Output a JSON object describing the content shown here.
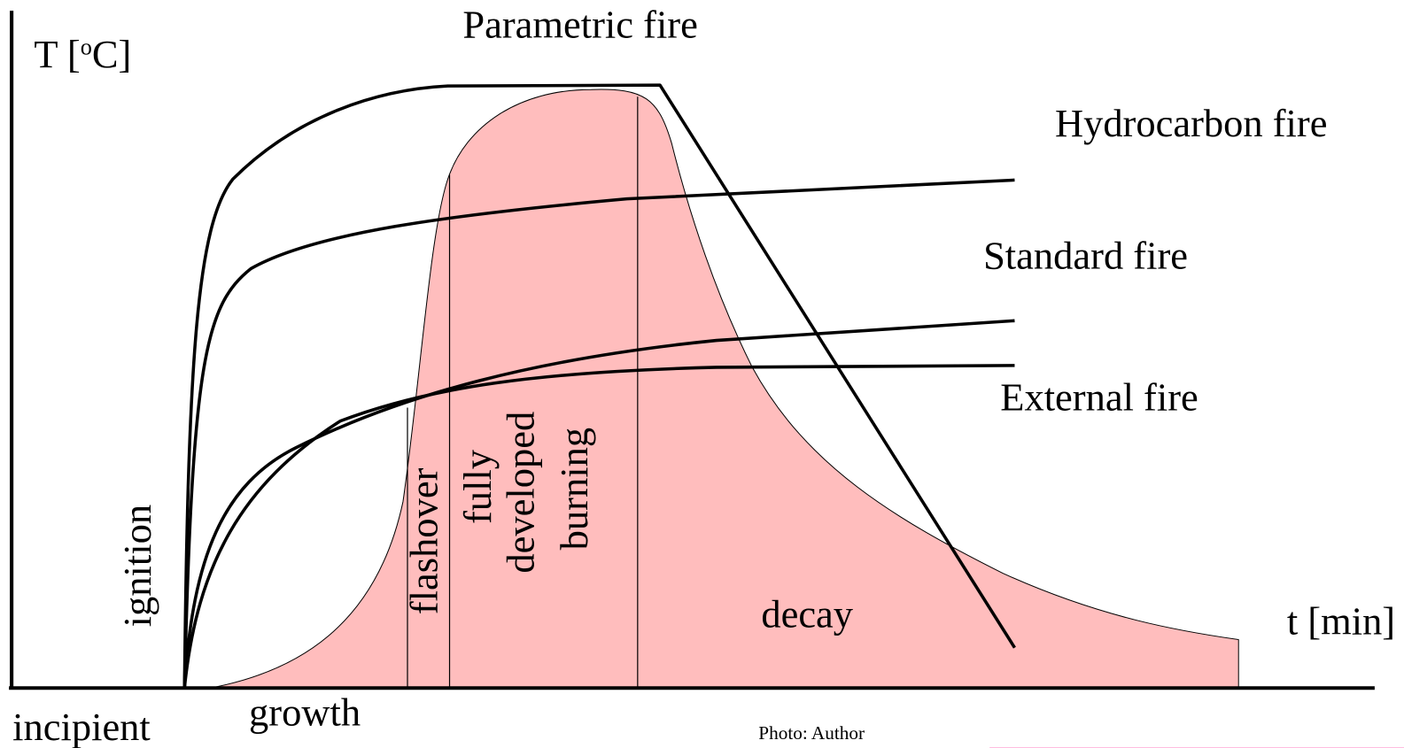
{
  "title": "Parametric fire",
  "y_axis_label": {
    "before": "T [",
    "superscript": "o",
    "after": "C]"
  },
  "x_axis_label": "t [min]",
  "curves": [
    "Hydrocarbon fire",
    "Standard fire",
    "External fire"
  ],
  "phases": {
    "ignition": "ignition",
    "flashover": "flashover",
    "fully_developed": [
      "fully",
      "developed",
      "burning"
    ],
    "decay": "decay",
    "incipient": "incipient",
    "growth": "growth"
  },
  "credit": "Photo: Author"
}
